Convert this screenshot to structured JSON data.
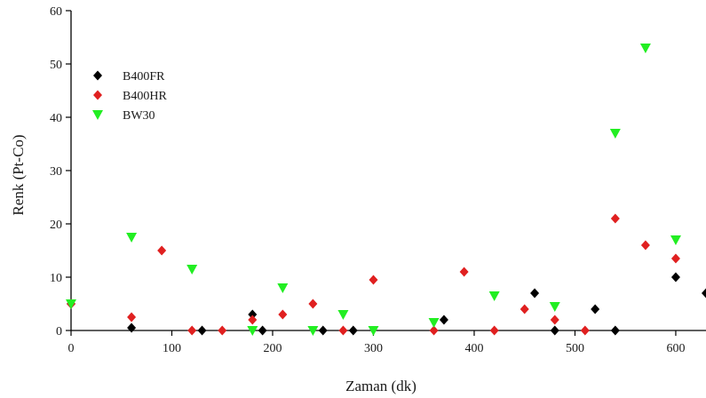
{
  "chart_data": {
    "type": "scatter",
    "title": "",
    "xlabel": "Zaman (dk)",
    "ylabel": "Renk (Pt-Co)",
    "xlim": [
      0,
      630
    ],
    "ylim": [
      0,
      60
    ],
    "x_ticks": [
      "0",
      "100",
      "200",
      "300",
      "400",
      "500",
      "600"
    ],
    "y_ticks": [
      "0",
      "10",
      "20",
      "30",
      "40",
      "50",
      "60"
    ],
    "grid": false,
    "legend_position": "top-left",
    "series": [
      {
        "name": "B400FR",
        "color": "#000000",
        "marker": "diamond",
        "x": [
          0,
          60,
          130,
          180,
          190,
          250,
          280,
          370,
          460,
          480,
          520,
          540,
          600,
          630
        ],
        "y": [
          5,
          0.5,
          0,
          3,
          0,
          0,
          0,
          2,
          7,
          0,
          4,
          0,
          10,
          7
        ]
      },
      {
        "name": "B400HR",
        "color": "#e02020",
        "marker": "diamond",
        "x": [
          0,
          60,
          90,
          120,
          150,
          180,
          210,
          240,
          270,
          300,
          360,
          390,
          420,
          450,
          480,
          510,
          540,
          570,
          600
        ],
        "y": [
          5,
          2.5,
          15,
          0,
          0,
          2,
          3,
          5,
          0,
          9.5,
          0,
          11,
          0,
          4,
          2,
          0,
          21,
          16,
          13.5
        ]
      },
      {
        "name": "BW30",
        "color": "#22ee22",
        "marker": "triangle-down",
        "x": [
          0,
          60,
          120,
          180,
          210,
          240,
          270,
          300,
          360,
          420,
          480,
          540,
          570,
          600
        ],
        "y": [
          5,
          17.5,
          11.5,
          0,
          8,
          0,
          3,
          0,
          1.5,
          6.5,
          4.5,
          37,
          53,
          17
        ]
      }
    ]
  }
}
